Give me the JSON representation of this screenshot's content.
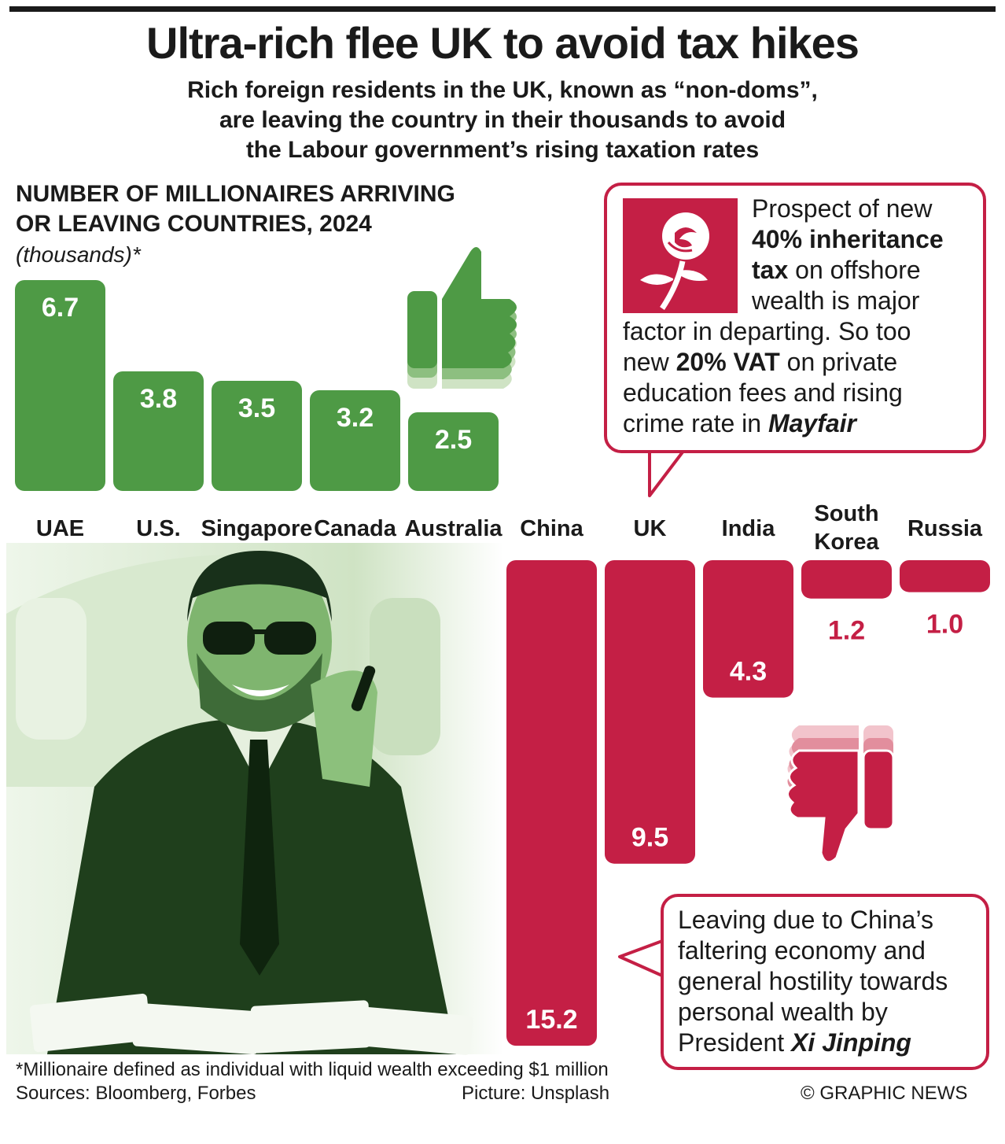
{
  "title": "Ultra-rich flee UK to avoid tax hikes",
  "subtitle": "Rich foreign residents in the UK, known as “non-doms”,\nare leaving the country in their thousands to avoid\nthe Labour government’s rising taxation rates",
  "chart_data": {
    "type": "bar",
    "title": "NUMBER OF MILLIONAIRES ARRIVING\nOR LEAVING COUNTRIES, 2024",
    "unit": "(thousands)*",
    "arriving": {
      "color": "#4e9a45",
      "categories": [
        "UAE",
        "U.S.",
        "Singapore",
        "Canada",
        "Australia"
      ],
      "values": [
        6.7,
        3.8,
        3.5,
        3.2,
        2.5
      ],
      "labels": [
        "6.7",
        "3.8",
        "3.5",
        "3.2",
        "2.5"
      ]
    },
    "leaving": {
      "color": "#c41f45",
      "categories": [
        "China",
        "UK",
        "India",
        "South\nKorea",
        "Russia"
      ],
      "values": [
        15.2,
        9.5,
        4.3,
        1.2,
        1.0
      ],
      "labels": [
        "15.2",
        "9.5",
        "4.3",
        "1.2",
        "1.0"
      ]
    }
  },
  "callouts": {
    "uk": {
      "l1": "Prospect of new",
      "l2": "40% inheritance",
      "l3a": "tax",
      "l3b": " on offshore",
      "l4": "wealth is major",
      "l5": "factor in departing. So too",
      "l6a": "new ",
      "l6b": "20% VAT",
      "l6c": " on private",
      "l7": "education fees and rising",
      "l8a": "crime rate in ",
      "l8b": "Mayfair"
    },
    "china": {
      "l1": "Leaving due to China’s",
      "l2": "faltering economy and",
      "l3": "general hostility towards",
      "l4": "personal wealth by",
      "l5a": "President ",
      "l5b": "Xi Jinping"
    }
  },
  "icons": {
    "thumbs_up": "thumbs-up-icon",
    "thumbs_down": "thumbs-down-icon",
    "labour_rose": "labour-rose-logo",
    "photo": "smiling-businessman-on-phone-photo"
  },
  "colors": {
    "green": "#4e9a45",
    "red": "#c41f45"
  },
  "footnote": "*Millionaire defined as individual with liquid wealth exceeding $1 million",
  "sources": "Sources: Bloomberg, Forbes",
  "picture_credit": "Picture: Unsplash",
  "copyright": "© GRAPHIC NEWS"
}
